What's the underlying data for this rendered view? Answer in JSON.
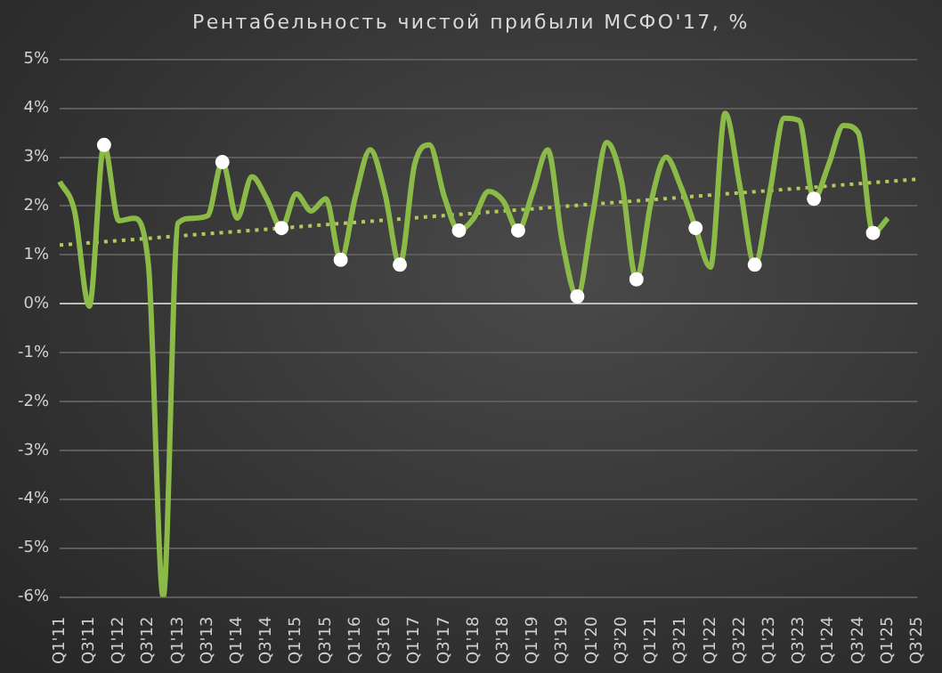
{
  "chart_data": {
    "type": "line",
    "title": "Рентабельность чистой прибыли МСФО'17, %",
    "categories": [
      "Q1'11",
      null,
      "Q3'11",
      null,
      "Q1'12",
      null,
      "Q3'12",
      null,
      "Q1'13",
      null,
      "Q3'13",
      null,
      "Q1'14",
      null,
      "Q3'14",
      null,
      "Q1'15",
      null,
      "Q3'15",
      null,
      "Q1'16",
      null,
      "Q3'16",
      null,
      "Q1'17",
      null,
      "Q3'17",
      null,
      "Q1'18",
      null,
      "Q3'18",
      null,
      "Q1'19",
      null,
      "Q3'19",
      null,
      "Q1'20",
      null,
      "Q3'20",
      null,
      "Q1'21",
      null,
      "Q3'21",
      null,
      "Q1'22",
      null,
      "Q3'22",
      null,
      "Q1'23",
      null,
      "Q3'23",
      null,
      "Q1'24",
      null,
      "Q3'24",
      null,
      "Q1'25",
      null,
      "Q3'25"
    ],
    "series": [
      {
        "color": "#8cba48",
        "marker": "none",
        "values": [
          2.5,
          1.9,
          -0.05,
          3.25,
          1.7,
          1.75,
          0.8,
          -6,
          1.65,
          1.75,
          1.8,
          2.9,
          1.75,
          2.6,
          2.15,
          1.55,
          2.25,
          1.9,
          2.15,
          0.9,
          2.2,
          3.15,
          2.25,
          0.8,
          2.85,
          3.25,
          2.2,
          1.5,
          1.75,
          2.3,
          2.1,
          1.5,
          2.3,
          3.15,
          1.25,
          0.15,
          1.75,
          3.3,
          2.5,
          0.5,
          2.1,
          3.0,
          2.4,
          1.55,
          0.75,
          3.9,
          2.4,
          0.8,
          2.25,
          3.8,
          3.75,
          2.15,
          2.85,
          3.65,
          3.5,
          1.45,
          1.75,
          null,
          null
        ]
      },
      {
        "color": "#b5c95a",
        "line_style": "dotted",
        "marker": "none",
        "values": [
          1.2,
          null,
          null,
          null,
          null,
          null,
          null,
          null,
          null,
          null,
          null,
          null,
          null,
          null,
          null,
          null,
          null,
          null,
          null,
          null,
          null,
          null,
          null,
          null,
          null,
          null,
          null,
          null,
          null,
          null,
          null,
          null,
          null,
          null,
          null,
          null,
          null,
          null,
          null,
          null,
          null,
          null,
          null,
          null,
          null,
          null,
          null,
          null,
          null,
          null,
          null,
          null,
          null,
          null,
          null,
          null,
          null,
          null,
          2.55
        ]
      },
      {
        "type": "scatter",
        "color": "#ffffff",
        "marker": "circle",
        "values": [
          null,
          null,
          null,
          3.25,
          null,
          null,
          null,
          null,
          null,
          null,
          null,
          2.9,
          null,
          null,
          null,
          1.55,
          null,
          null,
          null,
          0.9,
          null,
          null,
          null,
          0.8,
          null,
          null,
          null,
          1.5,
          null,
          null,
          null,
          1.5,
          null,
          null,
          null,
          0.15,
          null,
          null,
          null,
          0.5,
          null,
          null,
          null,
          1.55,
          null,
          null,
          null,
          0.8,
          null,
          null,
          null,
          2.15,
          null,
          null,
          null,
          1.45,
          null,
          null,
          null
        ]
      }
    ],
    "ylim": [
      -6,
      5
    ],
    "yticks": [
      {
        "value": -6,
        "label": "-6%"
      },
      {
        "value": -5,
        "label": "-5%"
      },
      {
        "value": -4,
        "label": "-4%"
      },
      {
        "value": -3,
        "label": "-3%"
      },
      {
        "value": -2,
        "label": "-2%"
      },
      {
        "value": -1,
        "label": "-1%"
      },
      {
        "value": 0,
        "label": "0%"
      },
      {
        "value": 1,
        "label": "1%"
      },
      {
        "value": 2,
        "label": "2%"
      },
      {
        "value": 3,
        "label": "3%"
      },
      {
        "value": 4,
        "label": "4%"
      },
      {
        "value": 5,
        "label": "5%"
      }
    ],
    "grid": "y",
    "legend": false
  }
}
